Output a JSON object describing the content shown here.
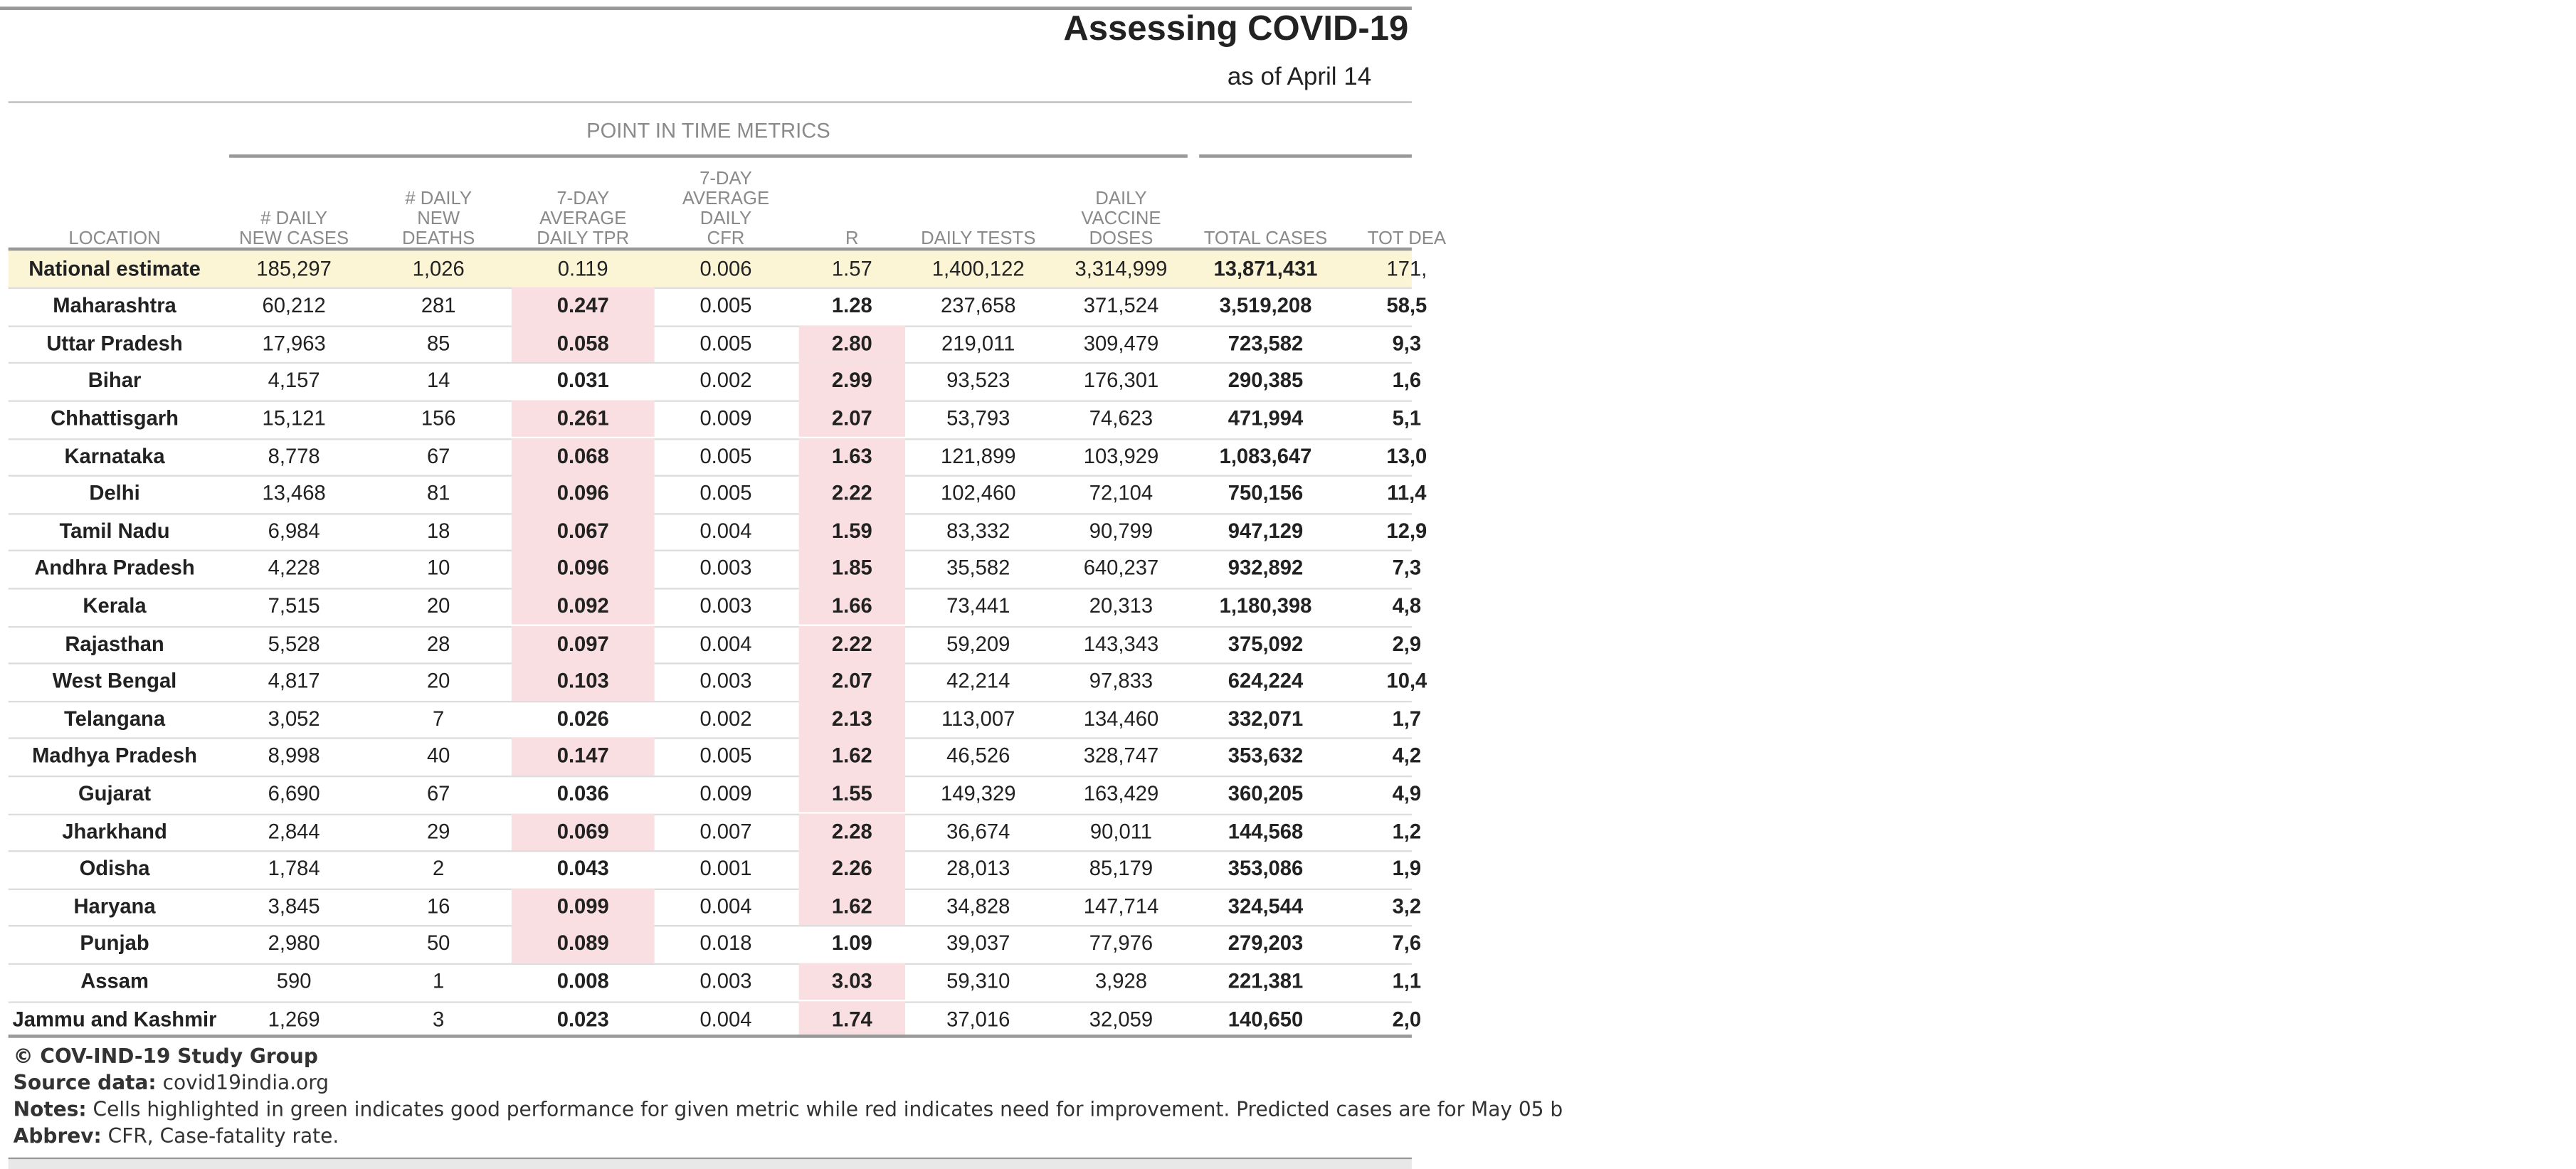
{
  "header": {
    "title": "Assessing COVID-19",
    "subtitle": "as of April 14"
  },
  "table": {
    "group_header": "POINT IN TIME METRICS",
    "columns": [
      "LOCATION",
      "# DAILY NEW CASES",
      "# DAILY NEW DEATHS",
      "7-DAY AVERAGE DAILY TPR",
      "7-DAY AVERAGE DAILY CFR",
      "R",
      "DAILY TESTS",
      "DAILY VACCINE DOSES",
      "TOTAL CASES",
      "TOT DEA"
    ],
    "rows": [
      [
        "National estimate",
        "185,297",
        "1,026",
        "0.119",
        "0.006",
        "1.57",
        "1,400,122",
        "3,314,999",
        "13,871,431",
        "171,"
      ],
      [
        "Maharashtra",
        "60,212",
        "281",
        "0.247",
        "0.005",
        "1.28",
        "237,658",
        "371,524",
        "3,519,208",
        "58,5"
      ],
      [
        "Uttar Pradesh",
        "17,963",
        "85",
        "0.058",
        "0.005",
        "2.80",
        "219,011",
        "309,479",
        "723,582",
        "9,3"
      ],
      [
        "Bihar",
        "4,157",
        "14",
        "0.031",
        "0.002",
        "2.99",
        "93,523",
        "176,301",
        "290,385",
        "1,6"
      ],
      [
        "Chhattisgarh",
        "15,121",
        "156",
        "0.261",
        "0.009",
        "2.07",
        "53,793",
        "74,623",
        "471,994",
        "5,1"
      ],
      [
        "Karnataka",
        "8,778",
        "67",
        "0.068",
        "0.005",
        "1.63",
        "121,899",
        "103,929",
        "1,083,647",
        "13,0"
      ],
      [
        "Delhi",
        "13,468",
        "81",
        "0.096",
        "0.005",
        "2.22",
        "102,460",
        "72,104",
        "750,156",
        "11,4"
      ],
      [
        "Tamil Nadu",
        "6,984",
        "18",
        "0.067",
        "0.004",
        "1.59",
        "83,332",
        "90,799",
        "947,129",
        "12,9"
      ],
      [
        "Andhra Pradesh",
        "4,228",
        "10",
        "0.096",
        "0.003",
        "1.85",
        "35,582",
        "640,237",
        "932,892",
        "7,3"
      ],
      [
        "Kerala",
        "7,515",
        "20",
        "0.092",
        "0.003",
        "1.66",
        "73,441",
        "20,313",
        "1,180,398",
        "4,8"
      ],
      [
        "Rajasthan",
        "5,528",
        "28",
        "0.097",
        "0.004",
        "2.22",
        "59,209",
        "143,343",
        "375,092",
        "2,9"
      ],
      [
        "West Bengal",
        "4,817",
        "20",
        "0.103",
        "0.003",
        "2.07",
        "42,214",
        "97,833",
        "624,224",
        "10,4"
      ],
      [
        "Telangana",
        "3,052",
        "7",
        "0.026",
        "0.002",
        "2.13",
        "113,007",
        "134,460",
        "332,071",
        "1,7"
      ],
      [
        "Madhya Pradesh",
        "8,998",
        "40",
        "0.147",
        "0.005",
        "1.62",
        "46,526",
        "328,747",
        "353,632",
        "4,2"
      ],
      [
        "Gujarat",
        "6,690",
        "67",
        "0.036",
        "0.009",
        "1.55",
        "149,329",
        "163,429",
        "360,205",
        "4,9"
      ],
      [
        "Jharkhand",
        "2,844",
        "29",
        "0.069",
        "0.007",
        "2.28",
        "36,674",
        "90,011",
        "144,568",
        "1,2"
      ],
      [
        "Odisha",
        "1,784",
        "2",
        "0.043",
        "0.001",
        "2.26",
        "28,013",
        "85,179",
        "353,086",
        "1,9"
      ],
      [
        "Haryana",
        "3,845",
        "16",
        "0.099",
        "0.004",
        "1.62",
        "34,828",
        "147,714",
        "324,544",
        "3,2"
      ],
      [
        "Punjab",
        "2,980",
        "50",
        "0.089",
        "0.018",
        "1.09",
        "39,037",
        "77,976",
        "279,203",
        "7,6"
      ],
      [
        "Assam",
        "590",
        "1",
        "0.008",
        "0.003",
        "3.03",
        "59,310",
        "3,928",
        "221,381",
        "1,1"
      ],
      [
        "Jammu and Kashmir",
        "1,269",
        "3",
        "0.023",
        "0.004",
        "1.74",
        "37,016",
        "32,059",
        "140,650",
        "2,0"
      ]
    ],
    "highlight_color": "#f9dfe1",
    "highlighted": [
      [
        1,
        3
      ],
      [
        2,
        3
      ],
      [
        2,
        5
      ],
      [
        3,
        5
      ],
      [
        4,
        3
      ],
      [
        4,
        5
      ],
      [
        5,
        3
      ],
      [
        5,
        5
      ],
      [
        6,
        3
      ],
      [
        6,
        5
      ],
      [
        7,
        3
      ],
      [
        7,
        5
      ],
      [
        8,
        3
      ],
      [
        8,
        5
      ],
      [
        9,
        3
      ],
      [
        9,
        5
      ],
      [
        10,
        3
      ],
      [
        10,
        5
      ],
      [
        11,
        3
      ],
      [
        11,
        5
      ],
      [
        12,
        5
      ],
      [
        13,
        3
      ],
      [
        13,
        5
      ],
      [
        14,
        5
      ],
      [
        15,
        3
      ],
      [
        15,
        5
      ],
      [
        16,
        5
      ],
      [
        17,
        3
      ],
      [
        17,
        5
      ],
      [
        18,
        3
      ],
      [
        19,
        5
      ],
      [
        20,
        5
      ]
    ]
  },
  "footer": [
    {
      "label": "© COV-IND-19 Study Group",
      "text": ""
    },
    {
      "label": "Source data:",
      "text": "covid19india.org"
    },
    {
      "label": "Notes:",
      "text": "Cells highlighted in green indicates good performance for given metric while red indicates need for improvement. Predicted cases are for May 05 b"
    },
    {
      "label": "Abbrev:",
      "text": "CFR, Case-fatality rate."
    }
  ]
}
